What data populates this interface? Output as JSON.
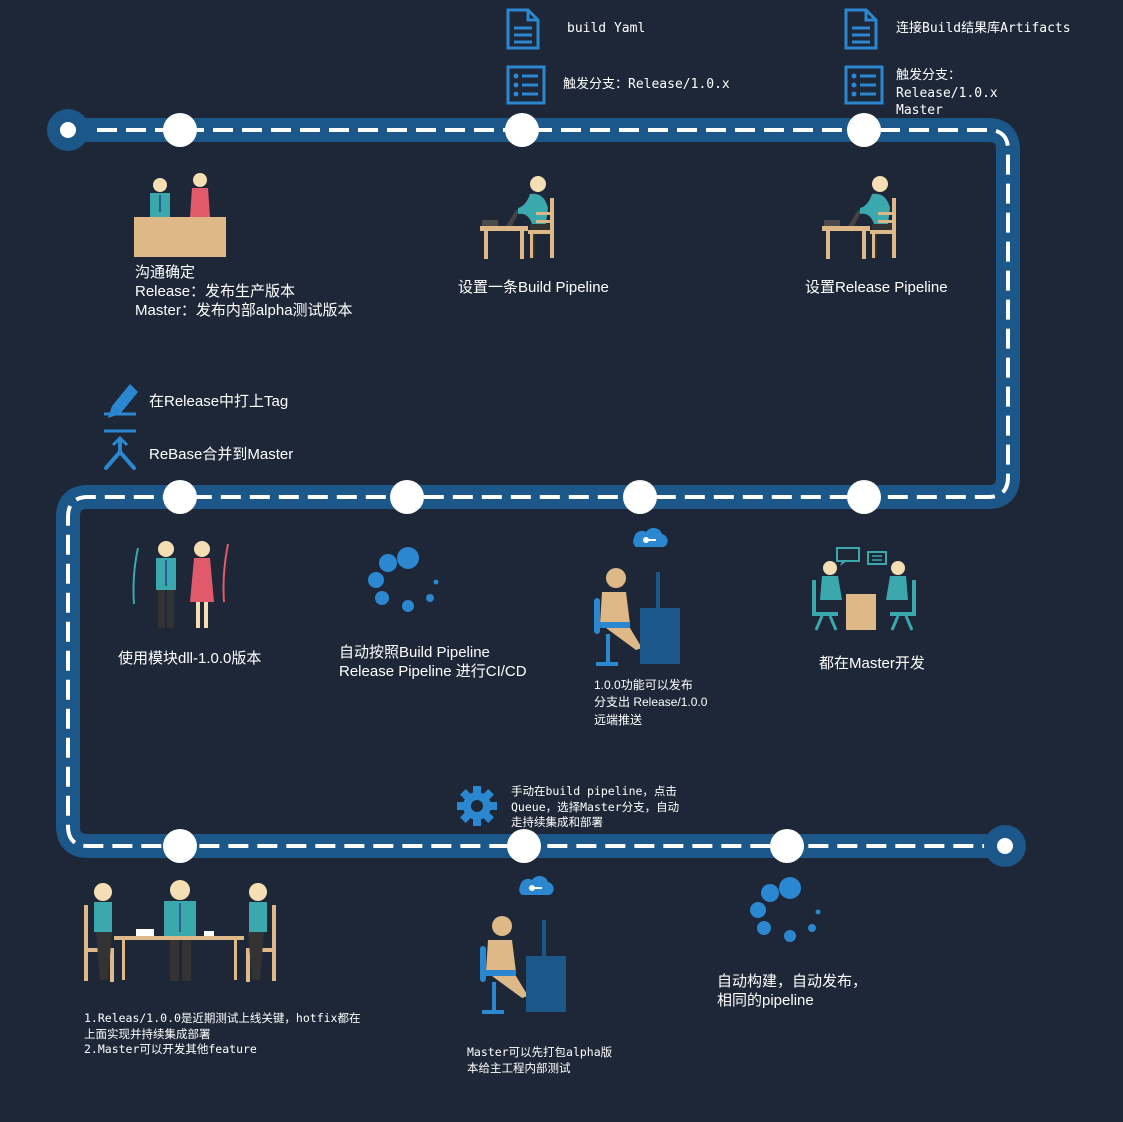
{
  "colors": {
    "background": "#1e2738",
    "track": "#1b5789",
    "dash": "#ffffff",
    "accent_blue": "#2a87d0",
    "text": "#ffffff"
  },
  "top_notes": [
    {
      "icon": "document-icon",
      "text": "build Yaml"
    },
    {
      "icon": "list-icon",
      "text": "触发分支：Release/1.0.x"
    },
    {
      "icon": "document-icon",
      "text": "连接Build结果库Artifacts"
    },
    {
      "icon": "list-icon",
      "text": "触发分支：\n    Release/1.0.x\n    Master"
    }
  ],
  "steps": [
    {
      "id": "communicate",
      "icon": "meeting-desk-icon",
      "text": "沟通确定\nRelease：发布生产版本\nMaster：发布内部alpha测试版本"
    },
    {
      "id": "build-pipeline",
      "icon": "person-at-desk-icon",
      "text": "设置一条Build Pipeline"
    },
    {
      "id": "release-pipeline",
      "icon": "person-at-desk-icon",
      "text": "设置Release Pipeline"
    },
    {
      "id": "dev-on-master",
      "icon": "two-people-chatting-icon",
      "text": "都在Master开发"
    },
    {
      "id": "branch-release",
      "icon": "person-thinking-icon",
      "text": "1.0.0功能可以发布\n分支出 Release/1.0.0\n远端推送"
    },
    {
      "id": "auto-cicd",
      "icon": "loading-spinner-icon",
      "text": "自动按照Build Pipeline\nRelease Pipeline 进行CI/CD"
    },
    {
      "id": "use-module",
      "icon": "couple-icon",
      "text": "使用模块dll-1.0.0版本"
    },
    {
      "id": "hotfix",
      "icon": "team-meeting-icon",
      "text": "1.Releas/1.0.0是近期测试上线关键，hotfix都在\n上面实现并持续集成部署\n2.Master可以开发其他feature"
    },
    {
      "id": "alpha",
      "icon": "person-thinking-icon",
      "text": "Master可以先打包alpha版\n本给主工程内部测试"
    },
    {
      "id": "auto-build",
      "icon": "loading-spinner-icon",
      "text": "自动构建，自动发布，\n相同的pipeline"
    }
  ],
  "side_notes": [
    {
      "icon": "pencil-icon",
      "text": "在Release中打上Tag"
    },
    {
      "icon": "merge-icon",
      "text": "ReBase合并到Master"
    },
    {
      "icon": "gear-icon",
      "text": "手动在build pipeline，点击\nQueue，选择Master分支，自动\n走持续集成和部署"
    }
  ]
}
